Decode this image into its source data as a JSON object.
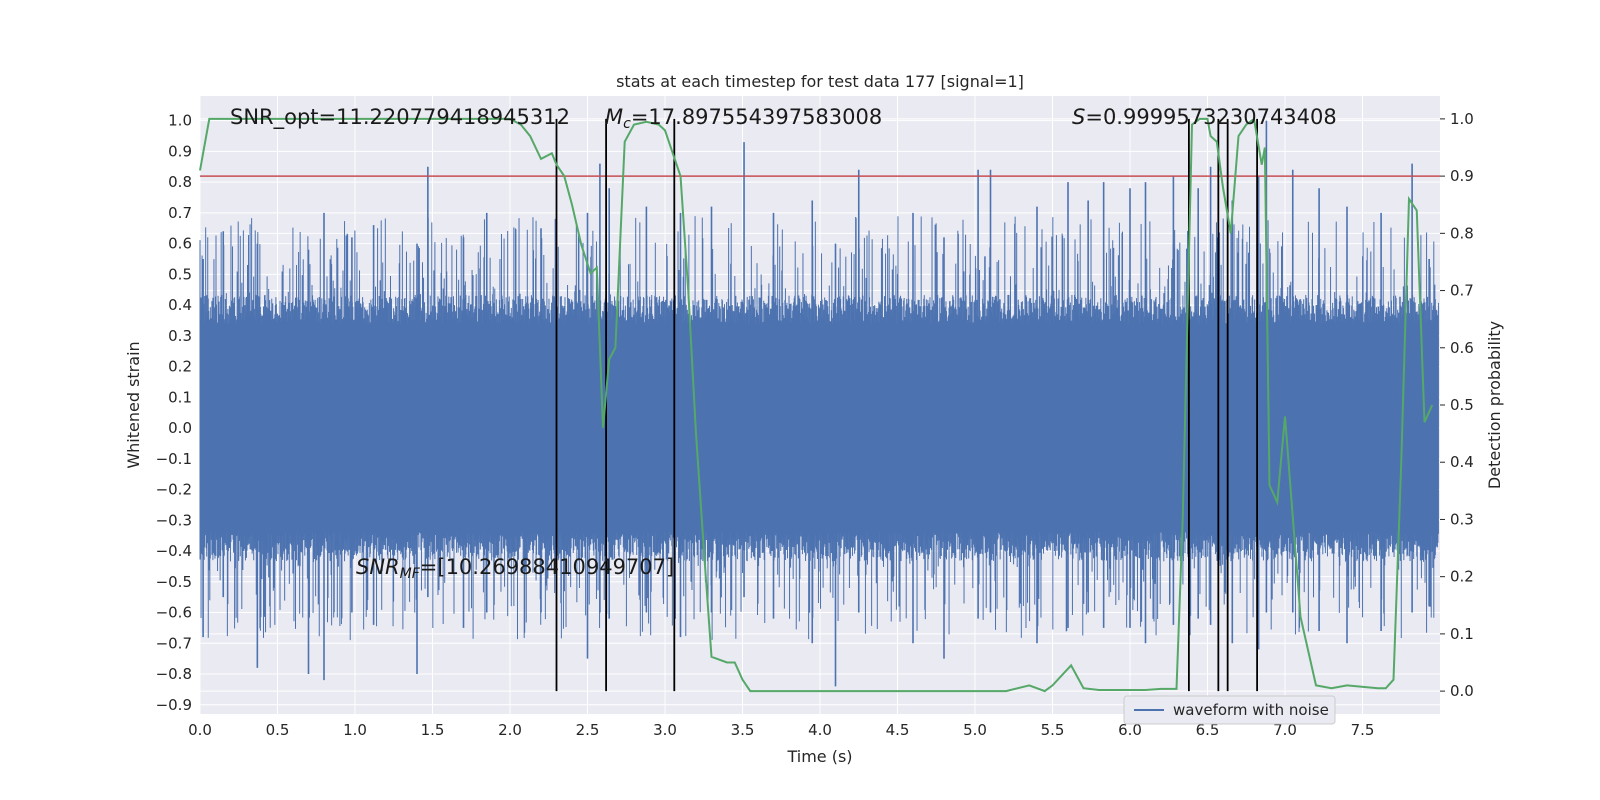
{
  "chart_data": {
    "type": "line",
    "title": "stats at each timestep for test data 177 [signal=1]",
    "xlabel": "Time (s)",
    "ylabel": "Whitened strain",
    "y2label": "Detection probability",
    "xlim": [
      0.0,
      8.0
    ],
    "ylim": [
      -0.93,
      1.08
    ],
    "y2lim": [
      -0.04,
      1.04
    ],
    "x_ticks": [
      0.0,
      0.5,
      1.0,
      1.5,
      2.0,
      2.5,
      3.0,
      3.5,
      4.0,
      4.5,
      5.0,
      5.5,
      6.0,
      6.5,
      7.0,
      7.5
    ],
    "x_tick_labels": [
      "0.0",
      "0.5",
      "1.0",
      "1.5",
      "2.0",
      "2.5",
      "3.0",
      "3.5",
      "4.0",
      "4.5",
      "5.0",
      "5.5",
      "6.0",
      "6.5",
      "7.0",
      "7.5"
    ],
    "y_ticks": [
      1.0,
      0.9,
      0.8,
      0.7,
      0.6,
      0.5,
      0.4,
      0.3,
      0.2,
      0.1,
      0.0,
      -0.1,
      -0.2,
      -0.3,
      -0.4,
      -0.5,
      -0.6,
      -0.7,
      -0.8,
      -0.9
    ],
    "y_tick_labels": [
      "1.0",
      "0.9",
      "0.8",
      "0.7",
      "0.6",
      "0.5",
      "0.4",
      "0.3",
      "0.2",
      "0.1",
      "0.0",
      "−0.1",
      "−0.2",
      "−0.3",
      "−0.4",
      "−0.5",
      "−0.6",
      "−0.7",
      "−0.8",
      "−0.9"
    ],
    "y2_ticks": [
      1.0,
      0.9,
      0.8,
      0.7,
      0.6,
      0.5,
      0.4,
      0.3,
      0.2,
      0.1,
      0.0
    ],
    "y2_tick_labels": [
      "1.0",
      "0.9",
      "0.8",
      "0.7",
      "0.6",
      "0.5",
      "0.4",
      "0.3",
      "0.2",
      "0.1",
      "0.0"
    ],
    "grid": true,
    "legend": {
      "placement": "lower-right",
      "entries": [
        "waveform with noise"
      ]
    },
    "annotations": {
      "snr_opt": "SNR_opt=11.220779418945312",
      "mc_symbol": "M",
      "mc_sub": "c",
      "mc_value": "=17.897554397583008",
      "s_symbol": "S",
      "s_value": "=0.9999573230743408",
      "snr_mf_symbol": "SNR",
      "snr_mf_sub": "MF",
      "snr_mf_value": "=[10.26988410949707]"
    },
    "series": [
      {
        "name": "waveform with noise",
        "kind": "strain",
        "color": "#4c72b0",
        "core_amplitude": 0.45,
        "peaks": [
          [
            0.02,
            0.55,
            -0.68
          ],
          [
            0.15,
            0.64,
            -0.55
          ],
          [
            0.37,
            0.6,
            -0.78
          ],
          [
            0.7,
            0.58,
            -0.8
          ],
          [
            0.8,
            0.7,
            -0.82
          ],
          [
            0.98,
            0.62,
            -0.6
          ],
          [
            1.12,
            0.66,
            -0.64
          ],
          [
            1.4,
            0.6,
            -0.8
          ],
          [
            1.47,
            0.85,
            -0.55
          ],
          [
            1.7,
            0.62,
            -0.65
          ],
          [
            1.85,
            0.7,
            -0.6
          ],
          [
            2.2,
            0.65,
            -0.6
          ],
          [
            2.5,
            0.7,
            -0.75
          ],
          [
            2.58,
            0.86,
            -0.6
          ],
          [
            2.64,
            0.78,
            -0.62
          ],
          [
            2.88,
            0.72,
            -0.6
          ],
          [
            3.1,
            0.7,
            -0.68
          ],
          [
            3.3,
            0.72,
            -0.6
          ],
          [
            3.51,
            0.93,
            -0.55
          ],
          [
            3.7,
            0.7,
            -0.62
          ],
          [
            3.95,
            0.74,
            -0.7
          ],
          [
            4.1,
            0.6,
            -0.84
          ],
          [
            4.25,
            0.84,
            -0.6
          ],
          [
            4.6,
            0.7,
            -0.7
          ],
          [
            4.8,
            0.62,
            -0.75
          ],
          [
            5.02,
            0.84,
            -0.62
          ],
          [
            5.1,
            0.84,
            -0.6
          ],
          [
            5.4,
            0.72,
            -0.7
          ],
          [
            5.6,
            0.8,
            -0.65
          ],
          [
            5.73,
            0.74,
            -0.6
          ],
          [
            5.83,
            0.8,
            -0.65
          ],
          [
            6.0,
            0.78,
            -0.65
          ],
          [
            6.1,
            0.8,
            -0.7
          ],
          [
            6.28,
            0.82,
            -0.64
          ],
          [
            6.44,
            0.78,
            -0.62
          ],
          [
            6.52,
            0.85,
            -0.64
          ],
          [
            6.66,
            0.74,
            -0.7
          ],
          [
            6.83,
            0.82,
            -0.72
          ],
          [
            6.88,
            1.0,
            -0.6
          ],
          [
            7.05,
            0.84,
            -0.6
          ],
          [
            7.22,
            0.78,
            -0.66
          ],
          [
            7.4,
            0.72,
            -0.7
          ],
          [
            7.62,
            0.7,
            -0.66
          ],
          [
            7.82,
            0.86,
            -0.6
          ],
          [
            7.93,
            0.55,
            -0.58
          ]
        ]
      },
      {
        "name": "",
        "kind": "probability",
        "color": "#55a868",
        "x": [
          0.0,
          0.06,
          0.2,
          0.5,
          1.0,
          1.5,
          2.0,
          2.07,
          2.13,
          2.2,
          2.27,
          2.3,
          2.35,
          2.4,
          2.46,
          2.52,
          2.56,
          2.6,
          2.64,
          2.68,
          2.74,
          2.8,
          2.88,
          2.96,
          3.0,
          3.05,
          3.1,
          3.15,
          3.2,
          3.25,
          3.3,
          3.4,
          3.45,
          3.5,
          3.55,
          3.6,
          3.65,
          3.7,
          4.0,
          4.2,
          4.5,
          5.0,
          5.2,
          5.35,
          5.45,
          5.5,
          5.62,
          5.7,
          5.8,
          5.9,
          6.0,
          6.1,
          6.2,
          6.3,
          6.34,
          6.4,
          6.45,
          6.5,
          6.52,
          6.56,
          6.6,
          6.65,
          6.7,
          6.75,
          6.8,
          6.85,
          6.87,
          6.9,
          6.95,
          7.0,
          7.1,
          7.2,
          7.3,
          7.4,
          7.6,
          7.65,
          7.7,
          7.75,
          7.8,
          7.85,
          7.9,
          7.95
        ],
        "y": [
          0.91,
          1.0,
          1.0,
          1.0,
          1.0,
          1.0,
          1.0,
          0.99,
          0.97,
          0.93,
          0.94,
          0.92,
          0.9,
          0.85,
          0.78,
          0.73,
          0.74,
          0.46,
          0.58,
          0.6,
          0.96,
          0.99,
          0.995,
          0.99,
          0.98,
          0.94,
          0.9,
          0.7,
          0.45,
          0.25,
          0.06,
          0.05,
          0.05,
          0.02,
          0.0,
          0.0,
          0.0,
          0.0,
          0.0,
          0.0,
          0.0,
          0.0,
          0.0,
          0.01,
          0.0,
          0.01,
          0.045,
          0.005,
          0.002,
          0.002,
          0.002,
          0.002,
          0.004,
          0.004,
          0.3,
          0.99,
          1.0,
          1.0,
          0.97,
          0.96,
          0.88,
          0.8,
          0.97,
          0.99,
          1.0,
          0.92,
          0.95,
          0.36,
          0.33,
          0.48,
          0.13,
          0.01,
          0.005,
          0.01,
          0.005,
          0.005,
          0.02,
          0.4,
          0.86,
          0.84,
          0.47,
          0.5
        ]
      }
    ],
    "threshold": {
      "value": 0.9,
      "axis": "y2",
      "color": "#c44e52"
    },
    "event_lines": {
      "x": [
        2.3,
        2.62,
        3.06,
        6.38,
        6.57,
        6.63,
        6.82
      ],
      "y_bottom": 0.0,
      "y_top": 1.0,
      "axis": "y2",
      "color": "#000000"
    }
  }
}
